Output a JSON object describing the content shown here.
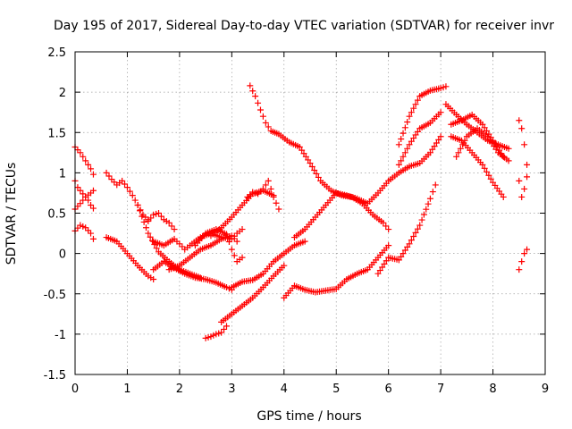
{
  "chart_data": {
    "type": "scatter",
    "title": "Day 195 of 2017, Sidereal Day-to-day VTEC variation (SDTVAR) for receiver invr",
    "xlabel": "GPS time / hours",
    "ylabel": "SDTVAR / TECUs",
    "xlim": [
      0,
      9
    ],
    "ylim": [
      -1.5,
      2.5
    ],
    "xticks": [
      0,
      1,
      2,
      3,
      4,
      5,
      6,
      7,
      8,
      9
    ],
    "yticks": [
      -1.5,
      -1,
      -0.5,
      0,
      0.5,
      1,
      1.5,
      2,
      2.5
    ],
    "grid": true,
    "marker": "+",
    "color": "#ff0000",
    "series": [
      {
        "x": [
          0.0,
          0.1,
          0.2,
          0.3,
          0.35
        ],
        "y": [
          1.32,
          1.25,
          1.15,
          1.05,
          0.98
        ]
      },
      {
        "x": [
          0.0,
          0.05,
          0.1,
          0.15,
          0.2,
          0.25,
          0.3,
          0.35
        ],
        "y": [
          0.9,
          0.82,
          0.78,
          0.74,
          0.7,
          0.66,
          0.6,
          0.56
        ]
      },
      {
        "x": [
          0.0,
          0.1,
          0.2,
          0.3,
          0.35
        ],
        "y": [
          0.55,
          0.62,
          0.7,
          0.75,
          0.78
        ]
      },
      {
        "x": [
          0.0,
          0.1,
          0.2,
          0.3,
          0.35
        ],
        "y": [
          0.28,
          0.35,
          0.32,
          0.25,
          0.18
        ]
      },
      {
        "x": [
          0.6,
          0.7,
          0.8,
          0.9,
          1.0,
          1.1,
          1.2,
          1.3,
          1.4
        ],
        "y": [
          1.0,
          0.92,
          0.85,
          0.9,
          0.82,
          0.72,
          0.6,
          0.48,
          0.42
        ]
      },
      {
        "x": [
          1.4,
          1.5,
          1.6,
          1.7,
          1.8,
          1.9
        ],
        "y": [
          0.4,
          0.48,
          0.5,
          0.42,
          0.38,
          0.3
        ]
      },
      {
        "x": [
          0.6,
          0.8,
          1.0,
          1.2,
          1.4,
          1.5
        ],
        "y": [
          0.2,
          0.15,
          0.0,
          -0.15,
          -0.28,
          -0.32
        ]
      },
      {
        "x": [
          1.2,
          1.4,
          1.6,
          1.8,
          2.0,
          2.2,
          2.4
        ],
        "y": [
          0.6,
          0.25,
          0.02,
          -0.1,
          -0.2,
          -0.25,
          -0.3
        ]
      },
      {
        "x": [
          1.5,
          1.7,
          1.9,
          2.1,
          2.3,
          2.5,
          2.7,
          2.9,
          3.0
        ],
        "y": [
          -0.2,
          -0.1,
          -0.18,
          -0.25,
          -0.3,
          -0.32,
          -0.36,
          -0.42,
          -0.45
        ]
      },
      {
        "x": [
          1.5,
          1.7,
          1.9,
          2.0,
          2.1,
          2.2,
          2.4,
          2.6,
          2.8,
          3.0,
          3.1,
          3.2
        ],
        "y": [
          0.15,
          0.1,
          0.18,
          0.12,
          0.05,
          0.1,
          0.2,
          0.25,
          0.2,
          0.18,
          0.25,
          0.3
        ]
      },
      {
        "x": [
          1.8,
          2.0,
          2.2,
          2.4,
          2.6,
          2.8,
          3.0,
          3.1
        ],
        "y": [
          -0.2,
          -0.15,
          -0.05,
          0.05,
          0.1,
          0.18,
          0.22,
          0.15
        ]
      },
      {
        "x": [
          2.3,
          2.5,
          2.7,
          2.9,
          3.0,
          3.1,
          3.2
        ],
        "y": [
          0.1,
          0.25,
          0.3,
          0.24,
          0.05,
          -0.1,
          -0.05
        ]
      },
      {
        "x": [
          2.5,
          2.6,
          2.7,
          2.8,
          2.9
        ],
        "y": [
          -1.05,
          -1.03,
          -1.0,
          -0.98,
          -0.9
        ]
      },
      {
        "x": [
          2.8,
          3.0,
          3.2,
          3.4,
          3.6,
          3.8,
          4.0
        ],
        "y": [
          -0.85,
          -0.75,
          -0.65,
          -0.55,
          -0.42,
          -0.28,
          -0.15
        ]
      },
      {
        "x": [
          3.0,
          3.2,
          3.4,
          3.6,
          3.8,
          4.0,
          4.2,
          4.4
        ],
        "y": [
          -0.42,
          -0.35,
          -0.33,
          -0.25,
          -0.1,
          0.0,
          0.1,
          0.15
        ]
      },
      {
        "x": [
          2.6,
          2.8,
          3.0,
          3.2,
          3.4,
          3.6,
          3.8
        ],
        "y": [
          0.22,
          0.32,
          0.45,
          0.6,
          0.74,
          0.78,
          0.72
        ]
      },
      {
        "x": [
          3.3,
          3.4,
          3.5,
          3.6,
          3.7,
          3.8,
          3.9
        ],
        "y": [
          0.7,
          0.76,
          0.74,
          0.8,
          0.9,
          0.7,
          0.55
        ]
      },
      {
        "x": [
          3.35,
          3.45,
          3.55,
          3.65,
          3.75,
          3.9,
          4.1,
          4.3,
          4.5,
          4.7,
          4.9,
          5.1,
          5.3,
          5.5,
          5.7,
          5.9,
          6.0
        ],
        "y": [
          2.08,
          1.95,
          1.78,
          1.62,
          1.52,
          1.48,
          1.38,
          1.32,
          1.12,
          0.9,
          0.78,
          0.72,
          0.7,
          0.62,
          0.48,
          0.38,
          0.3
        ]
      },
      {
        "x": [
          4.0,
          4.2,
          4.4,
          4.6,
          4.8,
          5.0,
          5.2,
          5.4,
          5.6,
          5.8,
          6.0
        ],
        "y": [
          -0.55,
          -0.4,
          -0.45,
          -0.48,
          -0.46,
          -0.44,
          -0.32,
          -0.25,
          -0.2,
          -0.05,
          0.1
        ]
      },
      {
        "x": [
          4.2,
          4.4,
          4.6,
          4.8,
          5.0,
          5.2,
          5.4,
          5.6,
          5.8,
          6.0,
          6.2,
          6.4,
          6.6,
          6.8,
          7.0
        ],
        "y": [
          0.2,
          0.3,
          0.45,
          0.6,
          0.75,
          0.72,
          0.68,
          0.62,
          0.75,
          0.9,
          1.0,
          1.08,
          1.12,
          1.25,
          1.45
        ]
      },
      {
        "x": [
          5.8,
          6.0,
          6.2,
          6.4,
          6.6,
          6.8,
          6.9
        ],
        "y": [
          -0.25,
          -0.05,
          -0.08,
          0.12,
          0.35,
          0.68,
          0.85
        ]
      },
      {
        "x": [
          6.2,
          6.4,
          6.6,
          6.8,
          7.0,
          7.1
        ],
        "y": [
          1.35,
          1.7,
          1.95,
          2.02,
          2.05,
          2.07
        ]
      },
      {
        "x": [
          6.2,
          6.4,
          6.6,
          6.8,
          7.0
        ],
        "y": [
          1.1,
          1.35,
          1.55,
          1.62,
          1.75
        ]
      },
      {
        "x": [
          7.1,
          7.3,
          7.5,
          7.7,
          7.9,
          8.1,
          8.3
        ],
        "y": [
          1.85,
          1.72,
          1.6,
          1.5,
          1.4,
          1.35,
          1.3
        ]
      },
      {
        "x": [
          7.2,
          7.4,
          7.6,
          7.8,
          8.0,
          8.2
        ],
        "y": [
          1.6,
          1.65,
          1.72,
          1.6,
          1.4,
          1.2
        ]
      },
      {
        "x": [
          7.2,
          7.4,
          7.6,
          7.8,
          8.0,
          8.2
        ],
        "y": [
          1.45,
          1.4,
          1.25,
          1.1,
          0.88,
          0.7
        ]
      },
      {
        "x": [
          7.3,
          7.5,
          7.7,
          7.9,
          8.1,
          8.3
        ],
        "y": [
          1.2,
          1.45,
          1.55,
          1.45,
          1.25,
          1.15
        ]
      },
      {
        "x": [
          8.5,
          8.55,
          8.6,
          8.65
        ],
        "y": [
          1.65,
          1.55,
          1.35,
          1.1
        ]
      },
      {
        "x": [
          8.5,
          8.55,
          8.6,
          8.65
        ],
        "y": [
          0.9,
          0.7,
          0.8,
          0.95
        ]
      },
      {
        "x": [
          8.5,
          8.55,
          8.6,
          8.65
        ],
        "y": [
          -0.2,
          -0.1,
          0.0,
          0.05
        ]
      }
    ]
  }
}
